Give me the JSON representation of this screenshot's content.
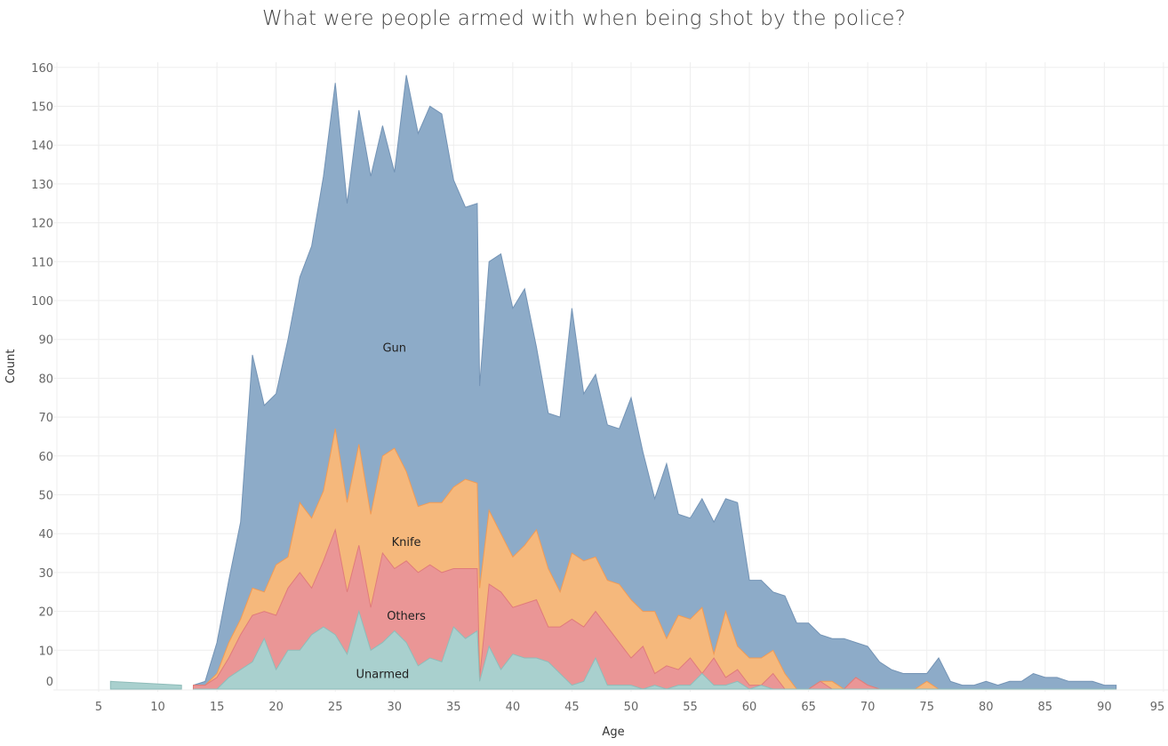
{
  "chart_data": {
    "type": "area",
    "stacked": true,
    "title": "What were people armed with when being shot by the police?",
    "xlabel": "Age",
    "ylabel": "Count",
    "xlim": [
      2,
      95
    ],
    "ylim": [
      -2,
      165
    ],
    "xticks": [
      5,
      10,
      15,
      20,
      25,
      30,
      35,
      40,
      45,
      50,
      55,
      60,
      65,
      70,
      75,
      80,
      85,
      90,
      95
    ],
    "yticks": [
      0,
      10,
      20,
      30,
      40,
      50,
      60,
      70,
      80,
      90,
      100,
      110,
      120,
      130,
      140,
      150,
      160
    ],
    "grid": true,
    "legend": "inline labels",
    "series_order_bottom_to_top": [
      "Unarmed",
      "Others",
      "Knife",
      "Gun"
    ],
    "series": [
      {
        "name": "Unarmed",
        "color": "#a9d0ce",
        "stroke": "#8fbcb9",
        "label_at": [
          29,
          4
        ],
        "points": [
          [
            6,
            2
          ],
          [
            12,
            1
          ]
        ],
        "segments": [
          [
            [
              6,
              2
            ],
            [
              12,
              1
            ]
          ],
          [
            [
              15,
              0
            ],
            [
              16,
              3
            ],
            [
              17,
              5
            ],
            [
              18,
              7
            ],
            [
              19,
              13
            ],
            [
              20,
              5
            ],
            [
              21,
              10
            ],
            [
              22,
              10
            ],
            [
              23,
              14
            ],
            [
              24,
              16
            ],
            [
              25,
              14
            ],
            [
              26,
              9
            ],
            [
              27,
              20
            ],
            [
              28,
              10
            ],
            [
              29,
              12
            ],
            [
              30,
              15
            ],
            [
              31,
              12
            ],
            [
              32,
              6
            ],
            [
              33,
              8
            ],
            [
              34,
              7
            ],
            [
              35,
              16
            ],
            [
              36,
              13
            ],
            [
              37,
              15
            ],
            [
              37.2,
              2
            ],
            [
              38,
              11
            ],
            [
              39,
              5
            ],
            [
              40,
              9
            ],
            [
              41,
              8
            ],
            [
              42,
              8
            ],
            [
              43,
              7
            ],
            [
              44,
              4
            ],
            [
              45,
              1
            ],
            [
              46,
              2
            ],
            [
              47,
              8
            ],
            [
              48,
              1
            ],
            [
              49,
              1
            ],
            [
              50,
              1
            ],
            [
              51,
              0
            ],
            [
              52,
              1
            ],
            [
              53,
              0
            ],
            [
              54,
              1
            ],
            [
              55,
              1
            ],
            [
              56,
              4
            ],
            [
              57,
              1
            ],
            [
              58,
              1
            ],
            [
              59,
              2
            ],
            [
              60,
              0
            ],
            [
              61,
              1
            ]
          ]
        ]
      },
      {
        "name": "Others",
        "color": "#ea9696",
        "stroke": "#e07b7b",
        "label_at": [
          31,
          19
        ],
        "values": [
          [
            13,
            1
          ],
          [
            14,
            1
          ],
          [
            15,
            3
          ],
          [
            16,
            5
          ],
          [
            17,
            9
          ],
          [
            18,
            12
          ],
          [
            19,
            7
          ],
          [
            20,
            14
          ],
          [
            21,
            16
          ],
          [
            22,
            20
          ],
          [
            23,
            12
          ],
          [
            24,
            17
          ],
          [
            25,
            27
          ],
          [
            26,
            16
          ],
          [
            27,
            17
          ],
          [
            28,
            11
          ],
          [
            29,
            23
          ],
          [
            30,
            16
          ],
          [
            31,
            21
          ],
          [
            32,
            24
          ],
          [
            33,
            24
          ],
          [
            34,
            23
          ],
          [
            35,
            15
          ],
          [
            36,
            18
          ],
          [
            37,
            16
          ],
          [
            37.2,
            1
          ],
          [
            38,
            16
          ],
          [
            39,
            20
          ],
          [
            40,
            12
          ],
          [
            41,
            14
          ],
          [
            42,
            15
          ],
          [
            43,
            9
          ],
          [
            44,
            12
          ],
          [
            45,
            17
          ],
          [
            46,
            14
          ],
          [
            47,
            12
          ],
          [
            48,
            15
          ],
          [
            49,
            11
          ],
          [
            50,
            7
          ],
          [
            51,
            11
          ],
          [
            52,
            3
          ],
          [
            53,
            6
          ],
          [
            54,
            4
          ],
          [
            55,
            7
          ],
          [
            56,
            0
          ],
          [
            57,
            7
          ],
          [
            58,
            2
          ],
          [
            59,
            3
          ],
          [
            60,
            1
          ],
          [
            61,
            0
          ],
          [
            62,
            4
          ],
          [
            63,
            0
          ],
          [
            64,
            0
          ],
          [
            65,
            0
          ],
          [
            66,
            2
          ],
          [
            67,
            0
          ],
          [
            68,
            0
          ],
          [
            69,
            3
          ],
          [
            70,
            1
          ]
        ]
      },
      {
        "name": "Knife",
        "color": "#f5b87c",
        "stroke": "#f19b55",
        "label_at": [
          31,
          38
        ],
        "values": [
          [
            13,
            0
          ],
          [
            14,
            0
          ],
          [
            15,
            1
          ],
          [
            16,
            4
          ],
          [
            17,
            4
          ],
          [
            18,
            7
          ],
          [
            19,
            5
          ],
          [
            20,
            13
          ],
          [
            21,
            8
          ],
          [
            22,
            18
          ],
          [
            23,
            18
          ],
          [
            24,
            18
          ],
          [
            25,
            26
          ],
          [
            26,
            23
          ],
          [
            27,
            26
          ],
          [
            28,
            24
          ],
          [
            29,
            25
          ],
          [
            30,
            31
          ],
          [
            31,
            23
          ],
          [
            32,
            17
          ],
          [
            33,
            16
          ],
          [
            34,
            18
          ],
          [
            35,
            21
          ],
          [
            36,
            23
          ],
          [
            37,
            22
          ],
          [
            37.2,
            23
          ],
          [
            38,
            19
          ],
          [
            39,
            15
          ],
          [
            40,
            13
          ],
          [
            41,
            15
          ],
          [
            42,
            18
          ],
          [
            43,
            15
          ],
          [
            44,
            9
          ],
          [
            45,
            17
          ],
          [
            46,
            17
          ],
          [
            47,
            14
          ],
          [
            48,
            12
          ],
          [
            49,
            15
          ],
          [
            50,
            15
          ],
          [
            51,
            9
          ],
          [
            52,
            16
          ],
          [
            53,
            7
          ],
          [
            54,
            14
          ],
          [
            55,
            10
          ],
          [
            56,
            17
          ],
          [
            57,
            1
          ],
          [
            58,
            17
          ],
          [
            59,
            6
          ],
          [
            60,
            7
          ],
          [
            61,
            7
          ],
          [
            62,
            6
          ],
          [
            63,
            4
          ],
          [
            64,
            0
          ],
          [
            65,
            0
          ],
          [
            66,
            0
          ],
          [
            67,
            2
          ],
          [
            68,
            0
          ],
          [
            69,
            0
          ],
          [
            70,
            0
          ],
          [
            75,
            2
          ],
          [
            76,
            0
          ]
        ]
      },
      {
        "name": "Gun",
        "color": "#8dabc8",
        "stroke": "#7393b5",
        "label_at": [
          30,
          88
        ],
        "values": [
          [
            13,
            0
          ],
          [
            14,
            1
          ],
          [
            15,
            8
          ],
          [
            16,
            16
          ],
          [
            17,
            25
          ],
          [
            18,
            60
          ],
          [
            19,
            48
          ],
          [
            20,
            44
          ],
          [
            21,
            56
          ],
          [
            22,
            58
          ],
          [
            23,
            70
          ],
          [
            24,
            81
          ],
          [
            25,
            89
          ],
          [
            26,
            77
          ],
          [
            27,
            86
          ],
          [
            28,
            87
          ],
          [
            29,
            85
          ],
          [
            30,
            71
          ],
          [
            31,
            102
          ],
          [
            32,
            96
          ],
          [
            33,
            102
          ],
          [
            34,
            100
          ],
          [
            35,
            79
          ],
          [
            36,
            70
          ],
          [
            37,
            72
          ],
          [
            37.2,
            52
          ],
          [
            38,
            64
          ],
          [
            39,
            72
          ],
          [
            40,
            64
          ],
          [
            41,
            66
          ],
          [
            42,
            47
          ],
          [
            43,
            40
          ],
          [
            44,
            45
          ],
          [
            45,
            63
          ],
          [
            46,
            43
          ],
          [
            47,
            47
          ],
          [
            48,
            40
          ],
          [
            49,
            40
          ],
          [
            50,
            52
          ],
          [
            51,
            41
          ],
          [
            52,
            29
          ],
          [
            53,
            45
          ],
          [
            54,
            26
          ],
          [
            55,
            26
          ],
          [
            56,
            28
          ],
          [
            57,
            34
          ],
          [
            58,
            29
          ],
          [
            59,
            37
          ],
          [
            60,
            20
          ],
          [
            61,
            20
          ],
          [
            62,
            15
          ],
          [
            63,
            20
          ],
          [
            64,
            17
          ],
          [
            65,
            17
          ],
          [
            66,
            12
          ],
          [
            67,
            11
          ],
          [
            68,
            13
          ],
          [
            69,
            9
          ],
          [
            70,
            10
          ],
          [
            71,
            7
          ],
          [
            72,
            5
          ],
          [
            73,
            4
          ],
          [
            74,
            4
          ],
          [
            75,
            2
          ],
          [
            76,
            8
          ],
          [
            77,
            2
          ],
          [
            78,
            1
          ],
          [
            79,
            1
          ],
          [
            80,
            2
          ],
          [
            81,
            1
          ],
          [
            82,
            2
          ],
          [
            83,
            2
          ],
          [
            84,
            4
          ],
          [
            85,
            3
          ],
          [
            86,
            3
          ],
          [
            87,
            2
          ],
          [
            88,
            2
          ],
          [
            89,
            2
          ],
          [
            90,
            1
          ],
          [
            91,
            1
          ]
        ]
      }
    ]
  }
}
